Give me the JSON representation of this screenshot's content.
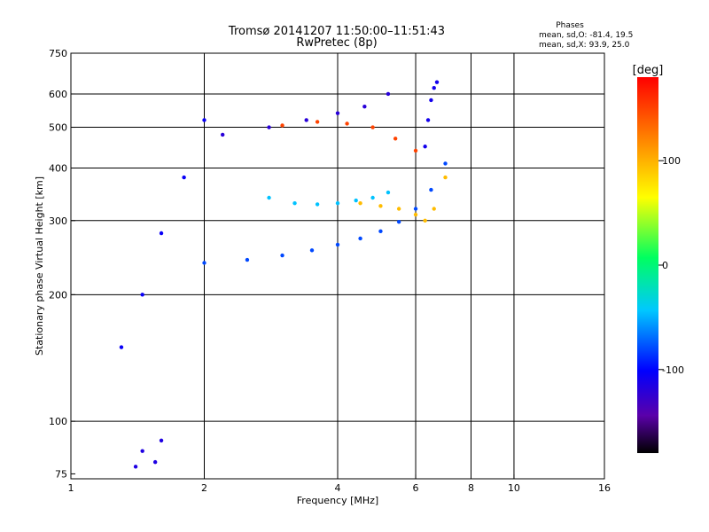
{
  "chart_data": {
    "type": "scatter",
    "title_line1": "Tromsø 20141207 11:50:00–11:51:43",
    "title_line2": "RwPretec (8p)",
    "stats": {
      "heading": "Phases",
      "line1": "mean, sd,O: -81.4, 19.5",
      "line2": "mean, sd,X:  93.9, 25.0"
    },
    "xlabel": "Frequency [MHz]",
    "ylabel": "Stationary phase Virtual Height [km]",
    "x_scale": "log",
    "y_scale": "log",
    "xlim": [
      1,
      16
    ],
    "ylim": [
      73,
      750
    ],
    "x_ticks": [
      {
        "value": 1,
        "label": "1"
      },
      {
        "value": 2,
        "label": "2"
      },
      {
        "value": 4,
        "label": "4"
      },
      {
        "value": 6,
        "label": "6"
      },
      {
        "value": 8,
        "label": "8"
      },
      {
        "value": 10,
        "label": "10"
      },
      {
        "value": 16,
        "label": "16"
      }
    ],
    "x_grid": [
      2,
      4,
      6,
      8,
      10
    ],
    "y_ticks": [
      {
        "value": 75,
        "label": "75"
      },
      {
        "value": 100,
        "label": "100"
      },
      {
        "value": 200,
        "label": "200"
      },
      {
        "value": 300,
        "label": "300"
      },
      {
        "value": 400,
        "label": "400"
      },
      {
        "value": 500,
        "label": "500"
      },
      {
        "value": 600,
        "label": "600"
      },
      {
        "value": 750,
        "label": "750"
      }
    ],
    "y_grid": [
      100,
      200,
      300,
      400,
      500,
      600
    ],
    "grid": true,
    "colorbar": {
      "label": "[deg]",
      "range": [
        -180,
        180
      ],
      "ticks": [
        {
          "value": 100,
          "label": "100"
        },
        {
          "value": 0,
          "label": "0"
        },
        {
          "value": -100,
          "label": "-100"
        }
      ]
    },
    "traces": [
      {
        "name": "",
        "color_value": -105,
        "x": [
          1.3,
          1.45,
          1.6,
          1.8,
          2.0
        ],
        "y": [
          150,
          200,
          280,
          380,
          520
        ]
      },
      {
        "name": "",
        "color_value": -80,
        "x": [
          2.0,
          2.5,
          3.0,
          3.5,
          4.0,
          4.5,
          5.0,
          5.5,
          6.0,
          6.5,
          7.0
        ],
        "y": [
          238,
          242,
          248,
          255,
          263,
          272,
          283,
          298,
          320,
          355,
          410
        ]
      },
      {
        "name": "",
        "color_value": -45,
        "x": [
          2.8,
          3.2,
          3.6,
          4.0,
          4.4,
          4.8,
          5.2
        ],
        "y": [
          340,
          330,
          328,
          330,
          335,
          340,
          350
        ]
      },
      {
        "name": "",
        "color_value": 95,
        "x": [
          4.5,
          5.0,
          5.5,
          6.0,
          6.3,
          6.6,
          7.0
        ],
        "y": [
          330,
          325,
          320,
          310,
          300,
          320,
          380
        ]
      },
      {
        "name": "",
        "color_value": -120,
        "x": [
          2.2,
          2.8,
          3.4,
          4.0,
          4.6,
          5.2
        ],
        "y": [
          480,
          500,
          520,
          540,
          560,
          600
        ]
      },
      {
        "name": "",
        "color_value": -110,
        "x": [
          6.3,
          6.4,
          6.5,
          6.6,
          6.7
        ],
        "y": [
          450,
          520,
          580,
          620,
          640
        ]
      },
      {
        "name": "",
        "color_value": 150,
        "x": [
          3.0,
          3.6,
          4.2,
          4.8,
          5.4,
          6.0
        ],
        "y": [
          505,
          515,
          510,
          500,
          470,
          440
        ]
      },
      {
        "name": "",
        "color_value": -115,
        "x": [
          1.4,
          1.45,
          1.55,
          1.6
        ],
        "y": [
          78,
          85,
          80,
          90
        ]
      }
    ]
  }
}
